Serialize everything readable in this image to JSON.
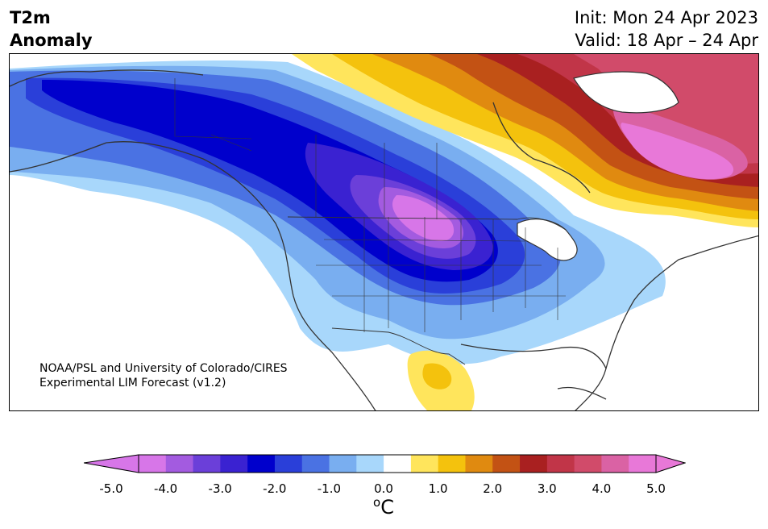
{
  "header": {
    "title_line1": "T2m",
    "title_line2": "Anomaly",
    "init_text": "Init: Mon 24 Apr 2023",
    "valid_text": "Valid: 18 Apr – 24 Apr"
  },
  "map": {
    "region": "North America",
    "projection": "Lambert conformal",
    "notable_patterns": [
      "strong cold anomaly (-3 to -5 C) centered over northern Great Plains",
      "cold anomaly extending through Alaska and western Canada",
      "warm anomaly (+3 to +5 C) over Labrador/Quebec and Greenland",
      "slight warm anomaly (+1 to +2 C) over northern Mexico"
    ]
  },
  "credit": {
    "line1": "NOAA/PSL and University of Colorado/CIRES",
    "line2": "Experimental LIM Forecast (v1.2)"
  },
  "colorbar": {
    "colors": [
      "#d776e8",
      "#a35be0",
      "#6b3fd9",
      "#3a22d1",
      "#0000cc",
      "#2a3fd9",
      "#4a72e3",
      "#79aef0",
      "#a8d7fb",
      "#ffffff",
      "#ffe55c",
      "#f4c20d",
      "#e08a10",
      "#c35214",
      "#a92020",
      "#c13548",
      "#d14b6a",
      "#da62a4",
      "#e878d8"
    ],
    "tick_labels": [
      "-5.0",
      "-4.0",
      "-3.0",
      "-2.0",
      "-1.0",
      "0.0",
      "1.0",
      "2.0",
      "3.0",
      "4.0",
      "5.0"
    ],
    "unit_base": "C",
    "unit_sup": "o"
  }
}
